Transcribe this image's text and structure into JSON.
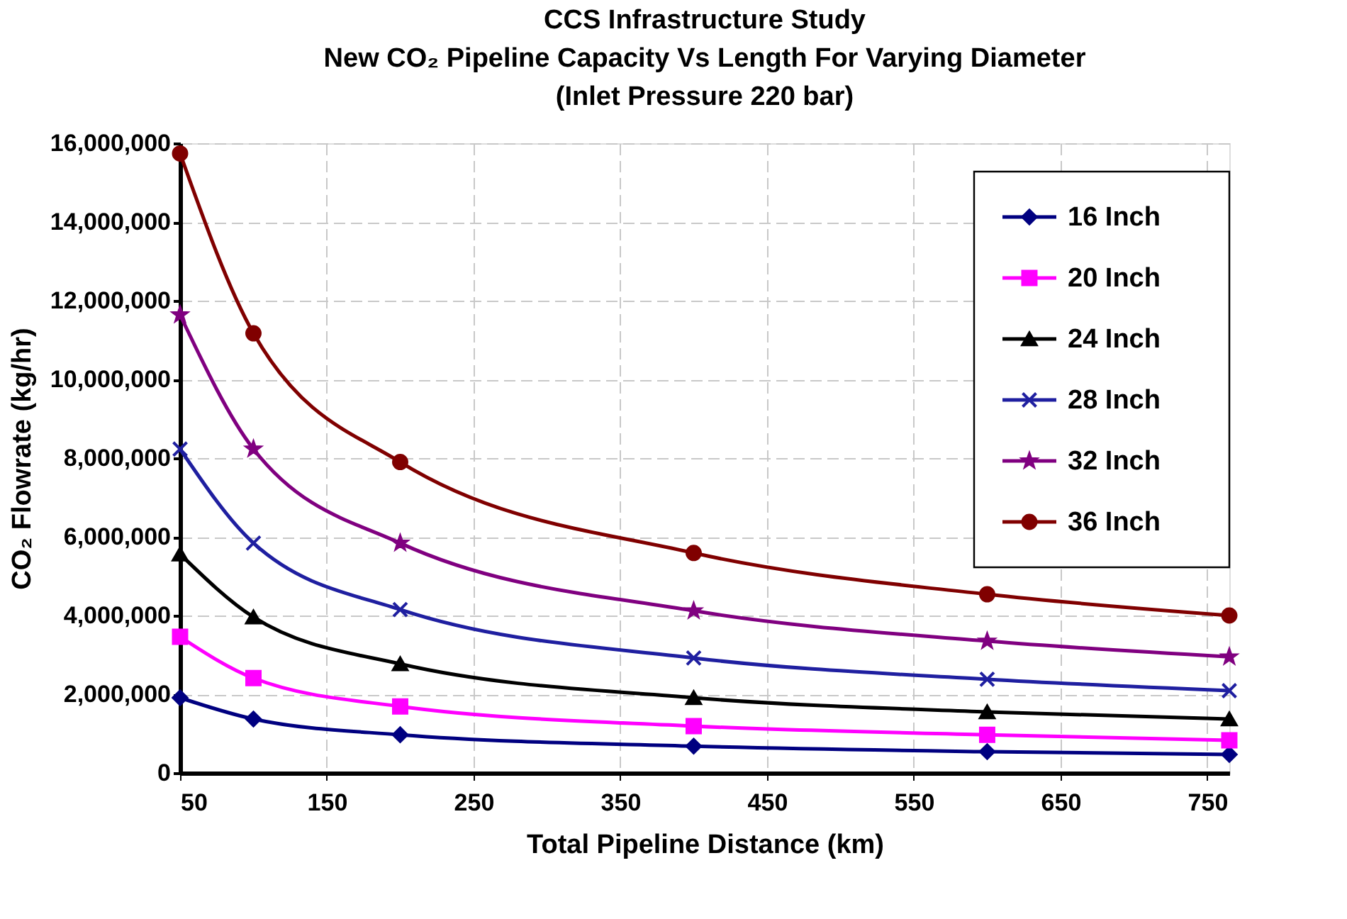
{
  "chart_data": {
    "type": "line",
    "title": "CCS Infrastructure Study\nNew CO₂ Pipeline Capacity Vs Length For Varying Diameter\n(Inlet Pressure 220 bar)",
    "xlabel": "Total Pipeline Distance (km)",
    "ylabel": "CO₂ Flowrate (kg/hr)",
    "x": [
      50,
      100,
      200,
      400,
      600,
      765
    ],
    "series": [
      {
        "name": "16 Inch",
        "color": "#000080",
        "marker": "diamond",
        "values": [
          1910000,
          1370000,
          970000,
          680000,
          540000,
          470000
        ]
      },
      {
        "name": "20 Inch",
        "color": "#ff00ff",
        "marker": "square",
        "values": [
          3460000,
          2410000,
          1690000,
          1190000,
          970000,
          830000
        ]
      },
      {
        "name": "24 Inch",
        "color": "#000000",
        "marker": "triangle",
        "values": [
          5560000,
          3960000,
          2770000,
          1910000,
          1550000,
          1370000
        ]
      },
      {
        "name": "28 Inch",
        "color": "#1f1fa0",
        "marker": "cross",
        "values": [
          8230000,
          5840000,
          4150000,
          2920000,
          2380000,
          2090000
        ]
      },
      {
        "name": "32 Inch",
        "color": "#800080",
        "marker": "star",
        "values": [
          11640000,
          8230000,
          5840000,
          4120000,
          3350000,
          2950000
        ]
      },
      {
        "name": "36 Inch",
        "color": "#800000",
        "marker": "circle",
        "values": [
          15740000,
          11170000,
          7900000,
          5590000,
          4540000,
          4000000
        ]
      }
    ],
    "xlim": [
      50,
      765
    ],
    "xticks": [
      50,
      150,
      250,
      350,
      450,
      550,
      650,
      750
    ],
    "ylim": [
      0,
      16000000
    ],
    "yticks": [
      0,
      {
        "value": 2000000,
        "label": "2,000,000"
      },
      {
        "value": 4000000,
        "label": "4,000,000"
      },
      {
        "value": 6000000,
        "label": "6,000,000"
      },
      {
        "value": 8000000,
        "label": "8,000,000"
      },
      {
        "value": 10000000,
        "label": "10,000,000"
      },
      {
        "value": 12000000,
        "label": "12,000,000"
      },
      {
        "value": 14000000,
        "label": "14,000,000"
      },
      {
        "value": 16000000,
        "label": "16,000,000"
      }
    ],
    "grid": true,
    "legend": "top right",
    "line_style": "solid"
  }
}
